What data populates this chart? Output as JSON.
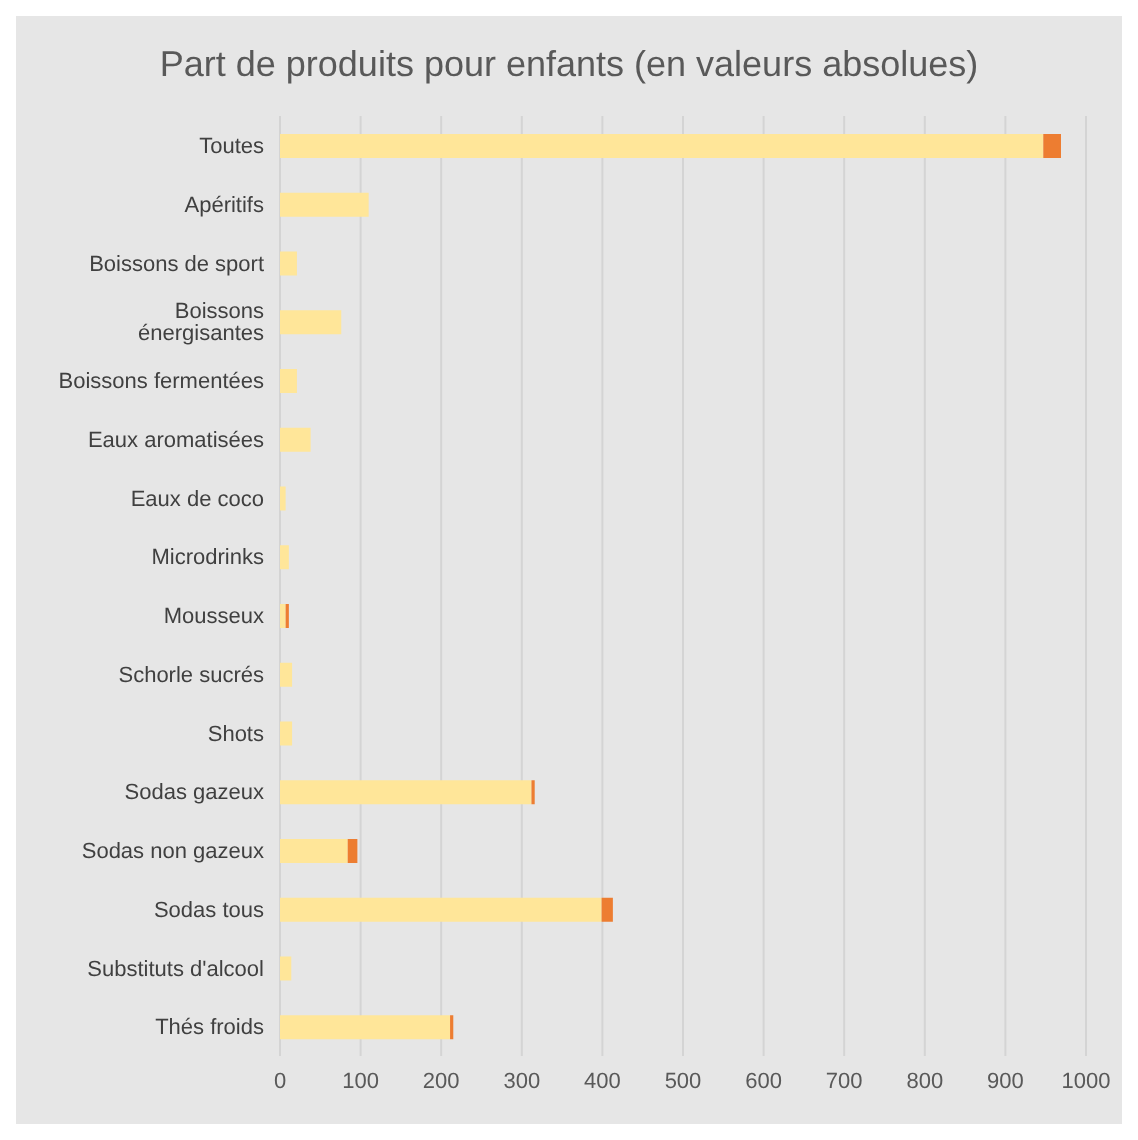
{
  "chart_data": {
    "type": "bar",
    "orientation": "horizontal",
    "stacked": true,
    "title": "Part de produits pour enfants (en valeurs absolues)",
    "categories": [
      "Toutes",
      "Apéritifs",
      "Boissons de sport",
      "Boissons énergisantes",
      "Boissons fermentées",
      "Eaux aromatisées",
      "Eaux de coco",
      "Microdrinks",
      "Mousseux",
      "Schorle sucrés",
      "Shots",
      "Sodas gazeux",
      "Sodas non gazeux",
      "Sodas tous",
      "Substituts d'alcool",
      "Thés froids"
    ],
    "series": [
      {
        "color": "#ffe699",
        "values": [
          947,
          110,
          21,
          76,
          21,
          38,
          7,
          11,
          7,
          15,
          15,
          312,
          84,
          399,
          14,
          211
        ]
      },
      {
        "color": "#ed7d31",
        "values": [
          22,
          0,
          0,
          0,
          0,
          0,
          0,
          0,
          4,
          0,
          0,
          4,
          12,
          14,
          0,
          4
        ]
      }
    ],
    "xlim": [
      0,
      1000
    ],
    "xticks": [
      0,
      100,
      200,
      300,
      400,
      500,
      600,
      700,
      800,
      900,
      1000
    ],
    "grid": "x",
    "legend": false
  }
}
